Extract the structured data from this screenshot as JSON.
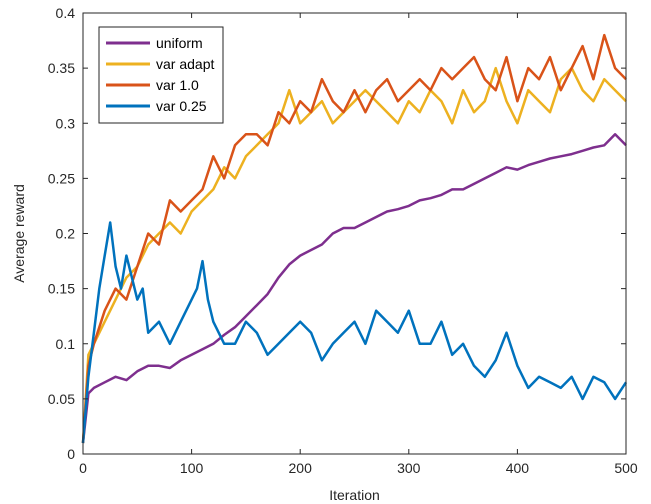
{
  "chart_data": {
    "type": "line",
    "xlabel": "Iteration",
    "ylabel": "Average reward",
    "xlim": [
      0,
      500
    ],
    "ylim": [
      0,
      0.4
    ],
    "x_ticks": [
      0,
      100,
      200,
      300,
      400,
      500
    ],
    "y_ticks": [
      0,
      0.05,
      0.1,
      0.15,
      0.2,
      0.25,
      0.3,
      0.35,
      0.4
    ],
    "x_tick_labels": [
      "0",
      "100",
      "200",
      "300",
      "400",
      "500"
    ],
    "y_tick_labels": [
      "0",
      "0.05",
      "0.1",
      "0.15",
      "0.2",
      "0.25",
      "0.3",
      "0.35",
      "0.4"
    ],
    "grid": false,
    "legend_position": "top-left",
    "series": [
      {
        "name": "uniform",
        "color": "#7E2F8E",
        "x": [
          0,
          5,
          10,
          20,
          30,
          40,
          50,
          60,
          70,
          80,
          90,
          100,
          110,
          120,
          130,
          140,
          150,
          160,
          170,
          180,
          190,
          200,
          210,
          220,
          230,
          240,
          250,
          260,
          270,
          280,
          290,
          300,
          310,
          320,
          330,
          340,
          350,
          360,
          370,
          380,
          390,
          400,
          410,
          420,
          430,
          440,
          450,
          460,
          470,
          480,
          490,
          500
        ],
        "y": [
          0.01,
          0.055,
          0.06,
          0.065,
          0.07,
          0.067,
          0.075,
          0.08,
          0.08,
          0.078,
          0.085,
          0.09,
          0.095,
          0.1,
          0.108,
          0.115,
          0.125,
          0.135,
          0.145,
          0.16,
          0.172,
          0.18,
          0.185,
          0.19,
          0.2,
          0.205,
          0.205,
          0.21,
          0.215,
          0.22,
          0.222,
          0.225,
          0.23,
          0.232,
          0.235,
          0.24,
          0.24,
          0.245,
          0.25,
          0.255,
          0.26,
          0.258,
          0.262,
          0.265,
          0.268,
          0.27,
          0.272,
          0.275,
          0.278,
          0.28,
          0.29,
          0.28
        ]
      },
      {
        "name": "var adapt",
        "color": "#EDB120",
        "x": [
          0,
          5,
          10,
          20,
          30,
          40,
          50,
          60,
          70,
          80,
          90,
          100,
          110,
          120,
          130,
          140,
          150,
          160,
          170,
          180,
          190,
          200,
          210,
          220,
          230,
          240,
          250,
          260,
          270,
          280,
          290,
          300,
          310,
          320,
          330,
          340,
          350,
          360,
          370,
          380,
          390,
          400,
          410,
          420,
          430,
          440,
          450,
          460,
          470,
          480,
          490,
          500
        ],
        "y": [
          0.01,
          0.09,
          0.1,
          0.12,
          0.14,
          0.16,
          0.17,
          0.19,
          0.2,
          0.21,
          0.2,
          0.22,
          0.23,
          0.24,
          0.26,
          0.25,
          0.27,
          0.28,
          0.29,
          0.3,
          0.33,
          0.3,
          0.31,
          0.32,
          0.3,
          0.31,
          0.32,
          0.33,
          0.32,
          0.31,
          0.3,
          0.32,
          0.31,
          0.33,
          0.32,
          0.3,
          0.33,
          0.31,
          0.32,
          0.35,
          0.32,
          0.3,
          0.33,
          0.32,
          0.31,
          0.34,
          0.35,
          0.33,
          0.32,
          0.34,
          0.33,
          0.32
        ]
      },
      {
        "name": "var 1.0",
        "color": "#D95319",
        "x": [
          0,
          5,
          10,
          20,
          30,
          40,
          50,
          60,
          70,
          80,
          90,
          100,
          110,
          120,
          130,
          140,
          150,
          160,
          170,
          180,
          190,
          200,
          210,
          220,
          230,
          240,
          250,
          260,
          270,
          280,
          290,
          300,
          310,
          320,
          330,
          340,
          350,
          360,
          370,
          380,
          390,
          400,
          410,
          420,
          430,
          440,
          450,
          460,
          470,
          480,
          490,
          500
        ],
        "y": [
          0.01,
          0.08,
          0.1,
          0.13,
          0.15,
          0.14,
          0.17,
          0.2,
          0.19,
          0.23,
          0.22,
          0.23,
          0.24,
          0.27,
          0.25,
          0.28,
          0.29,
          0.29,
          0.28,
          0.31,
          0.3,
          0.32,
          0.31,
          0.34,
          0.32,
          0.31,
          0.33,
          0.31,
          0.33,
          0.34,
          0.32,
          0.33,
          0.34,
          0.33,
          0.35,
          0.34,
          0.35,
          0.36,
          0.34,
          0.33,
          0.36,
          0.32,
          0.35,
          0.34,
          0.36,
          0.33,
          0.35,
          0.37,
          0.34,
          0.38,
          0.35,
          0.34
        ]
      },
      {
        "name": "var 0.25",
        "color": "#0072BD",
        "x": [
          0,
          5,
          10,
          15,
          20,
          25,
          30,
          35,
          40,
          45,
          50,
          55,
          60,
          70,
          80,
          90,
          100,
          105,
          110,
          115,
          120,
          130,
          140,
          150,
          160,
          170,
          180,
          190,
          200,
          210,
          220,
          230,
          240,
          250,
          260,
          270,
          280,
          290,
          300,
          310,
          320,
          330,
          340,
          350,
          360,
          370,
          380,
          390,
          400,
          410,
          420,
          430,
          440,
          450,
          460,
          470,
          480,
          490,
          500
        ],
        "y": [
          0.01,
          0.07,
          0.11,
          0.15,
          0.18,
          0.21,
          0.17,
          0.15,
          0.18,
          0.16,
          0.14,
          0.15,
          0.11,
          0.12,
          0.1,
          0.12,
          0.14,
          0.15,
          0.175,
          0.14,
          0.12,
          0.1,
          0.1,
          0.12,
          0.11,
          0.09,
          0.1,
          0.11,
          0.12,
          0.11,
          0.085,
          0.1,
          0.11,
          0.12,
          0.1,
          0.13,
          0.12,
          0.11,
          0.13,
          0.1,
          0.1,
          0.12,
          0.09,
          0.1,
          0.08,
          0.07,
          0.085,
          0.11,
          0.08,
          0.06,
          0.07,
          0.065,
          0.06,
          0.07,
          0.05,
          0.07,
          0.065,
          0.05,
          0.065
        ]
      }
    ]
  }
}
